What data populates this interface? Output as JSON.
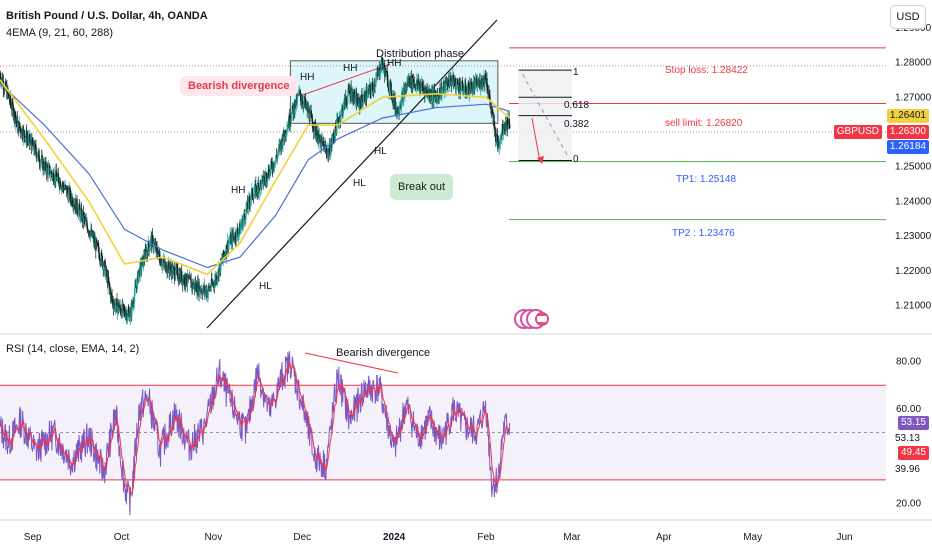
{
  "header": {
    "title": "British Pound / U.S. Dollar, 4h, OANDA",
    "indicator": "4EMA (9, 21, 60, 288)",
    "rsi_title": "RSI (14, close, EMA, 14, 2)",
    "currency_button": "USD"
  },
  "annotations": {
    "bearish_divergence_callout": "Bearish divergence",
    "distribution_phase": "Distribution phase",
    "break_out": "Break out",
    "rsi_bearish_divergence": "Bearish divergence",
    "hh": "HH",
    "hl": "HL",
    "stop_loss": "Stop loss: 1.28422",
    "sell_limit": "sell limit: 1.26820",
    "tp1": "TP1: 1.25148",
    "tp2": "TP2 : 1.23476",
    "fib_1": "1",
    "fib_618": "0.618",
    "fib_382": "0.382",
    "fib_0": "0"
  },
  "price_tags": {
    "ema_high": "1.26401",
    "symbol": "GBPUSD",
    "last": "1.26300",
    "ema_low": "1.26184"
  },
  "rsi_tags": {
    "top": "53.15",
    "mid": "53.13",
    "bottom": "49.45",
    "low": "39.96"
  },
  "colors": {
    "up": "#26a69a",
    "down": "#1b1b1b",
    "ema_yellow": "#f2d13a",
    "ema_blue": "#4a6fd6",
    "rsi_line": "#7e57c2",
    "rsi_ma": "#f23645",
    "stop": "#f23645",
    "tp": "#4caf50",
    "box": "#b2ebf2"
  },
  "chart_data": [
    {
      "type": "candlestick",
      "title": "British Pound / U.S. Dollar, 4h, OANDA",
      "ylim": [
        1.203,
        1.298
      ],
      "yticks": [
        1.29,
        1.28,
        1.27,
        1.25,
        1.24,
        1.23,
        1.22,
        1.21
      ],
      "xticks": [
        "Sep",
        "Oct",
        "Nov",
        "Dec",
        "2024",
        "Feb",
        "Mar",
        "Apr",
        "May",
        "Jun"
      ],
      "x_domain": [
        "2023-08-21",
        "2024-06-15"
      ],
      "price_path": [
        [
          "2023-08-21",
          1.2765
        ],
        [
          "2023-08-24",
          1.27
        ],
        [
          "2023-08-27",
          1.262
        ],
        [
          "2023-09-01",
          1.256
        ],
        [
          "2023-09-05",
          1.25
        ],
        [
          "2023-09-10",
          1.246
        ],
        [
          "2023-09-15",
          1.24
        ],
        [
          "2023-09-20",
          1.232
        ],
        [
          "2023-09-25",
          1.222
        ],
        [
          "2023-09-28",
          1.211
        ],
        [
          "2023-10-02",
          1.208
        ],
        [
          "2023-10-04",
          1.2075
        ],
        [
          "2023-10-07",
          1.22
        ],
        [
          "2023-10-11",
          1.229
        ],
        [
          "2023-10-15",
          1.222
        ],
        [
          "2023-10-20",
          1.219
        ],
        [
          "2023-10-25",
          1.216
        ],
        [
          "2023-10-30",
          1.214
        ],
        [
          "2023-11-02",
          1.218
        ],
        [
          "2023-11-06",
          1.228
        ],
        [
          "2023-11-10",
          1.232
        ],
        [
          "2023-11-14",
          1.242
        ],
        [
          "2023-11-18",
          1.246
        ],
        [
          "2023-11-22",
          1.252
        ],
        [
          "2023-11-26",
          1.262
        ],
        [
          "2023-11-30",
          1.271
        ],
        [
          "2023-12-03",
          1.266
        ],
        [
          "2023-12-07",
          1.257
        ],
        [
          "2023-12-10",
          1.254
        ],
        [
          "2023-12-13",
          1.263
        ],
        [
          "2023-12-17",
          1.272
        ],
        [
          "2023-12-20",
          1.268
        ],
        [
          "2023-12-25",
          1.273
        ],
        [
          "2023-12-28",
          1.28
        ],
        [
          "2024-01-02",
          1.266
        ],
        [
          "2024-01-06",
          1.275
        ],
        [
          "2024-01-10",
          1.273
        ],
        [
          "2024-01-15",
          1.27
        ],
        [
          "2024-01-20",
          1.275
        ],
        [
          "2024-01-25",
          1.272
        ],
        [
          "2024-01-30",
          1.274
        ],
        [
          "2024-02-01",
          1.276
        ],
        [
          "2024-02-03",
          1.265
        ],
        [
          "2024-02-05",
          1.256
        ],
        [
          "2024-02-07",
          1.262
        ],
        [
          "2024-02-09",
          1.263
        ]
      ],
      "ema_fast_path": [
        [
          "2023-08-21",
          1.275
        ],
        [
          "2023-09-05",
          1.258
        ],
        [
          "2023-09-20",
          1.24
        ],
        [
          "2023-10-02",
          1.222
        ],
        [
          "2023-10-15",
          1.224
        ],
        [
          "2023-10-30",
          1.219
        ],
        [
          "2023-11-10",
          1.228
        ],
        [
          "2023-11-22",
          1.246
        ],
        [
          "2023-12-03",
          1.262
        ],
        [
          "2023-12-13",
          1.262
        ],
        [
          "2023-12-28",
          1.27
        ],
        [
          "2024-01-15",
          1.271
        ],
        [
          "2024-02-01",
          1.27
        ],
        [
          "2024-02-09",
          1.264
        ]
      ],
      "ema_slow_path": [
        [
          "2023-08-21",
          1.274
        ],
        [
          "2023-09-05",
          1.262
        ],
        [
          "2023-09-20",
          1.248
        ],
        [
          "2023-10-02",
          1.232
        ],
        [
          "2023-10-15",
          1.226
        ],
        [
          "2023-10-30",
          1.221
        ],
        [
          "2023-11-10",
          1.224
        ],
        [
          "2023-11-22",
          1.236
        ],
        [
          "2023-12-03",
          1.252
        ],
        [
          "2023-12-13",
          1.258
        ],
        [
          "2023-12-28",
          1.264
        ],
        [
          "2024-01-15",
          1.267
        ],
        [
          "2024-02-01",
          1.268
        ],
        [
          "2024-02-09",
          1.266
        ]
      ],
      "levels": {
        "stop_loss": 1.28422,
        "sell_limit": 1.2682,
        "tp1": 1.25148,
        "tp2": 1.23476,
        "last": 1.263,
        "ema_high": 1.26401,
        "ema_low": 1.26184
      },
      "distribution_box": {
        "x": [
          "2023-11-27",
          "2024-02-05"
        ],
        "y": [
          1.2625,
          1.2805
        ]
      },
      "fib_levels": [
        1,
        0.618,
        0.382,
        0
      ],
      "fib_prices": [
        1.2778,
        1.27,
        1.2647,
        1.2518
      ],
      "fib_x": [
        "2024-02-12",
        "2024-03-01"
      ]
    },
    {
      "type": "line",
      "title": "RSI (14, close, EMA, 14, 2)",
      "ylim": [
        13,
        90
      ],
      "yticks": [
        80,
        60,
        20
      ],
      "band": [
        70,
        30
      ],
      "mid": 50,
      "rsi_path": [
        [
          "2023-08-21",
          52
        ],
        [
          "2023-08-24",
          46
        ],
        [
          "2023-08-28",
          55
        ],
        [
          "2023-09-02",
          42
        ],
        [
          "2023-09-08",
          50
        ],
        [
          "2023-09-14",
          38
        ],
        [
          "2023-09-20",
          48
        ],
        [
          "2023-09-25",
          33
        ],
        [
          "2023-09-29",
          58
        ],
        [
          "2023-10-02",
          28
        ],
        [
          "2023-10-04",
          20
        ],
        [
          "2023-10-07",
          60
        ],
        [
          "2023-10-10",
          65
        ],
        [
          "2023-10-14",
          42
        ],
        [
          "2023-10-19",
          58
        ],
        [
          "2023-10-24",
          44
        ],
        [
          "2023-10-29",
          52
        ],
        [
          "2023-11-03",
          75
        ],
        [
          "2023-11-07",
          62
        ],
        [
          "2023-11-12",
          50
        ],
        [
          "2023-11-16",
          76
        ],
        [
          "2023-11-20",
          58
        ],
        [
          "2023-11-24",
          73
        ],
        [
          "2023-11-27",
          80
        ],
        [
          "2023-12-01",
          62
        ],
        [
          "2023-12-05",
          40
        ],
        [
          "2023-12-09",
          36
        ],
        [
          "2023-12-13",
          74
        ],
        [
          "2023-12-17",
          55
        ],
        [
          "2023-12-22",
          68
        ],
        [
          "2023-12-27",
          69
        ],
        [
          "2024-01-01",
          42
        ],
        [
          "2024-01-05",
          62
        ],
        [
          "2024-01-09",
          48
        ],
        [
          "2024-01-13",
          55
        ],
        [
          "2024-01-17",
          46
        ],
        [
          "2024-01-21",
          60
        ],
        [
          "2024-01-25",
          52
        ],
        [
          "2024-01-29",
          50
        ],
        [
          "2024-02-01",
          62
        ],
        [
          "2024-02-03",
          28
        ],
        [
          "2024-02-05",
          30
        ],
        [
          "2024-02-07",
          52
        ],
        [
          "2024-02-09",
          53
        ]
      ]
    }
  ]
}
